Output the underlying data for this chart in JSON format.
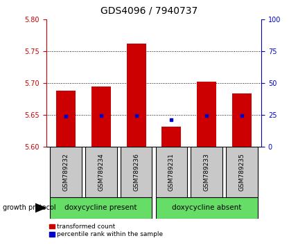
{
  "title": "GDS4096 / 7940737",
  "samples": [
    "GSM789232",
    "GSM789234",
    "GSM789236",
    "GSM789231",
    "GSM789233",
    "GSM789235"
  ],
  "bar_bottoms": [
    5.6,
    5.6,
    5.6,
    5.6,
    5.6,
    5.6
  ],
  "bar_tops": [
    5.688,
    5.695,
    5.762,
    5.632,
    5.703,
    5.684
  ],
  "percentile_values": [
    5.648,
    5.649,
    5.649,
    5.643,
    5.649,
    5.649
  ],
  "ylim": [
    5.6,
    5.8
  ],
  "yticks_left": [
    5.6,
    5.65,
    5.7,
    5.75,
    5.8
  ],
  "yticks_right": [
    0,
    25,
    50,
    75,
    100
  ],
  "bar_color": "#cc0000",
  "percentile_color": "#0000cc",
  "group1_label": "doxycycline present",
  "group2_label": "doxycycline absent",
  "group1_indices": [
    0,
    1,
    2
  ],
  "group2_indices": [
    3,
    4,
    5
  ],
  "group_color": "#66dd66",
  "xlabel_left": "growth protocol",
  "legend_bar_label": "transformed count",
  "legend_pct_label": "percentile rank within the sample",
  "dotted_line_color": "#000000",
  "background_color": "#ffffff",
  "xticklabel_bg": "#c8c8c8",
  "title_fontsize": 10,
  "tick_fontsize": 7,
  "label_fontsize": 6.5,
  "group_fontsize": 7.5
}
